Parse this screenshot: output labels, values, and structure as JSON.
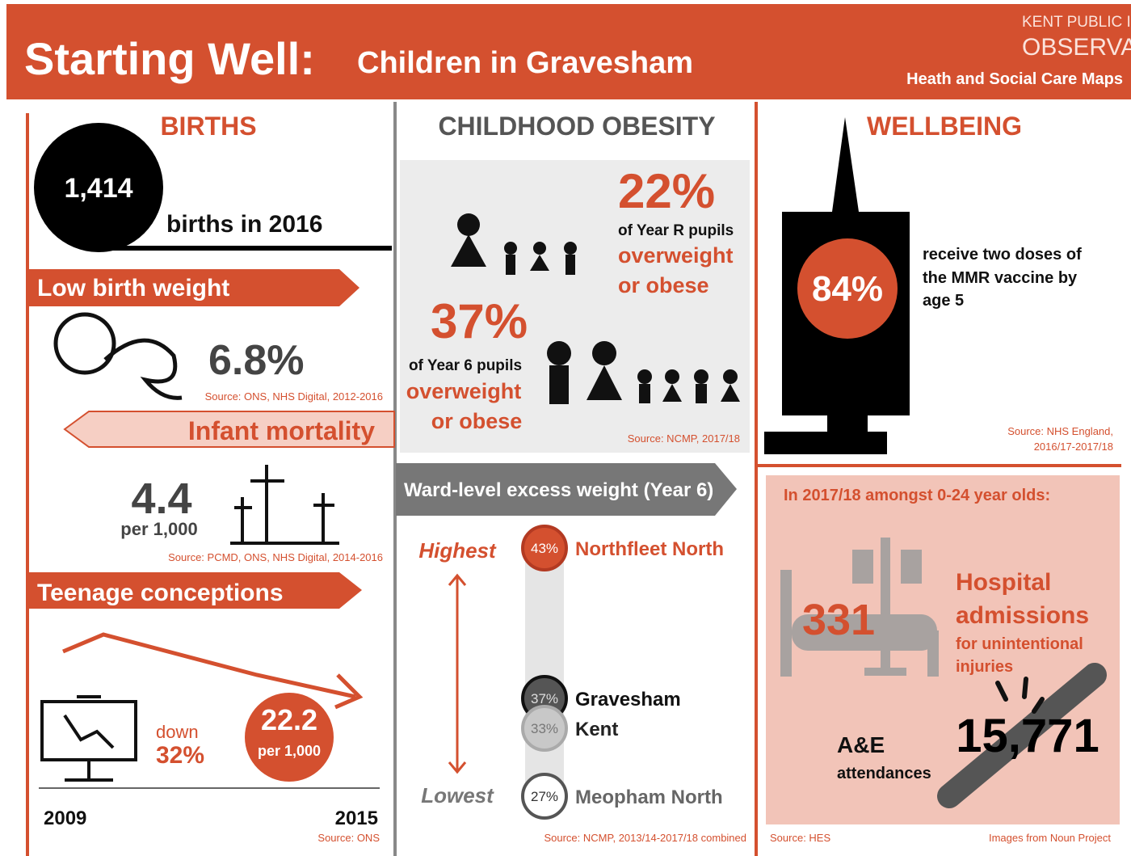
{
  "header": {
    "title": "Starting Well:",
    "subtitle": "Children in Gravesham",
    "org_line1": "KENT PUBLIC I",
    "org_line2": "OBSERVA",
    "tagline": "Heath and Social Care Maps"
  },
  "births": {
    "heading": "BIRTHS",
    "count": "1,414",
    "caption": "births in 2016"
  },
  "low_birth_weight": {
    "heading": "Low birth weight",
    "value": "6.8%",
    "source": "Source: ONS, NHS Digital, 2012-2016"
  },
  "infant_mortality": {
    "heading": "Infant mortality",
    "value": "4.4",
    "unit": "per 1,000",
    "source": "Source: PCMD, ONS, NHS Digital, 2014-2016"
  },
  "teenage_conceptions": {
    "heading": "Teenage conceptions",
    "change_label": "down",
    "change_value": "32%",
    "rate": "22.2",
    "rate_unit": "per 1,000",
    "start_year": "2009",
    "end_year": "2015",
    "source": "Source: ONS"
  },
  "obesity": {
    "heading": "CHILDHOOD OBESITY",
    "year_r": {
      "value": "22%",
      "text": "of Year R pupils",
      "line1": "overweight",
      "line2": "or obese"
    },
    "year_6": {
      "value": "37%",
      "text": "of Year 6 pupils",
      "line1": "overweight",
      "line2": "or obese"
    },
    "source": "Source: NCMP, 2017/18"
  },
  "ward": {
    "heading": "Ward-level excess weight (Year 6)",
    "highest": "Highest",
    "lowest": "Lowest",
    "items": [
      {
        "pct": "43%",
        "name": "Northfleet North"
      },
      {
        "pct": "37%",
        "name": "Gravesham"
      },
      {
        "pct": "33%",
        "name": "Kent"
      },
      {
        "pct": "27%",
        "name": "Meopham North"
      }
    ],
    "source": "Source: NCMP, 2013/14-2017/18 combined"
  },
  "wellbeing": {
    "heading": "WELLBEING",
    "value": "84%",
    "lines": [
      "receive two doses of",
      "the MMR vaccine by",
      "age 5"
    ],
    "source": [
      "Source: NHS England,",
      "2016/17-2017/18"
    ]
  },
  "injuries": {
    "intro": "In 2017/18 amongst 0-24 year olds:",
    "admissions_value": "331",
    "admissions_lines": [
      "Hospital",
      "admissions",
      "for unintentional",
      "injuries"
    ],
    "ae_value": "15,771",
    "ae_lines": [
      "A&E",
      "attendances"
    ],
    "source": "Source: HES",
    "credit": "Images from Noun Project"
  }
}
